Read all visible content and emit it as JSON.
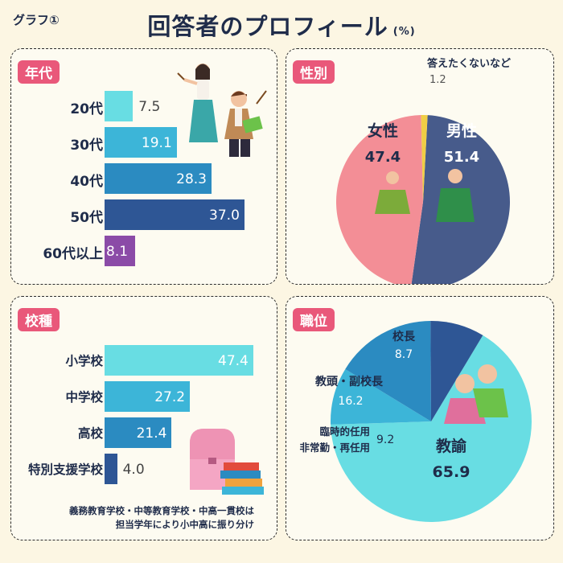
{
  "header": {
    "tag": "グラフ①",
    "title": "回答者のプロフィール",
    "unit": "(%)"
  },
  "chart_data": [
    {
      "type": "bar",
      "orientation": "horizontal",
      "title": "年代",
      "categories": [
        "20代",
        "30代",
        "40代",
        "50代",
        "60代以上"
      ],
      "values": [
        7.5,
        19.1,
        28.3,
        37.0,
        8.1
      ],
      "value_labels": [
        "7.5",
        "19.1",
        "28.3",
        "37.0",
        "8.1"
      ],
      "colors": [
        "#68dde3",
        "#3cb5d8",
        "#2b8bc1",
        "#2e5695",
        "#8b4ba7"
      ]
    },
    {
      "type": "pie",
      "title": "性別",
      "categories": [
        "男性",
        "女性",
        "答えたくないなど"
      ],
      "values": [
        51.4,
        47.4,
        1.2
      ],
      "value_labels": [
        "51.4",
        "47.4",
        "1.2"
      ],
      "colors": [
        "#475b8b",
        "#f38e96",
        "#f0ce45"
      ]
    },
    {
      "type": "bar",
      "orientation": "horizontal",
      "title": "校種",
      "categories": [
        "小学校",
        "中学校",
        "高校",
        "特別支援学校"
      ],
      "values": [
        47.4,
        27.2,
        21.4,
        4.0
      ],
      "value_labels": [
        "47.4",
        "27.2",
        "21.4",
        "4.0"
      ],
      "colors": [
        "#68dde3",
        "#3cb5d8",
        "#2b8bc1",
        "#2e5695"
      ],
      "note": [
        "義務教育学校・中等教育学校・中高一貫校は",
        "担当学年により小中高に振り分け"
      ]
    },
    {
      "type": "pie",
      "title": "職位",
      "categories": [
        "教諭",
        "臨時的任用\n非常勤・再任用",
        "教頭・副校長",
        "校長"
      ],
      "category_lines": [
        [
          "教諭"
        ],
        [
          "臨時的任用",
          "非常勤・再任用"
        ],
        [
          "教頭・副校長"
        ],
        [
          "校長"
        ]
      ],
      "values": [
        65.9,
        9.2,
        16.2,
        8.7
      ],
      "value_labels": [
        "65.9",
        "9.2",
        "16.2",
        "8.7"
      ],
      "colors": [
        "#68dde3",
        "#3cb5d8",
        "#2b8bc1",
        "#2e5695"
      ]
    }
  ]
}
